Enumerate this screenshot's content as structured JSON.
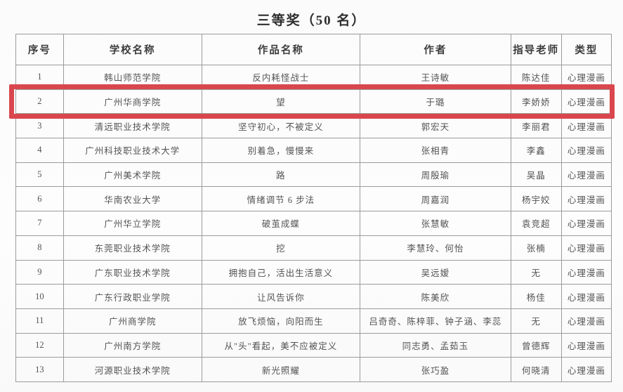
{
  "title": "三等奖（50 名）",
  "colors": {
    "highlight_red": "#d9464d",
    "table_border": "#9b9b9b",
    "text": "#555353"
  },
  "table": {
    "columns": [
      "序号",
      "学校名称",
      "作品名称",
      "作者",
      "指导老师",
      "类型"
    ],
    "highlighted_row_number": "2",
    "rows": [
      [
        "1",
        "韩山师范学院",
        "反内耗怪战士",
        "王诗敏",
        "陈达佳",
        "心理漫画"
      ],
      [
        "2",
        "广州华商学院",
        "望",
        "于璐",
        "李娇娇",
        "心理漫画"
      ],
      [
        "3",
        "清远职业技术学院",
        "坚守初心，不被定义",
        "郭宏天",
        "李丽君",
        "心理漫画"
      ],
      [
        "4",
        "广州科技职业技术大学",
        "别着急，慢慢来",
        "张相青",
        "李鑫",
        "心理漫画"
      ],
      [
        "5",
        "广州美术学院",
        "路",
        "周殷瑜",
        "吴晶",
        "心理漫画"
      ],
      [
        "6",
        "华南农业大学",
        "情绪调节 6 步法",
        "周嘉润",
        "杨宇姣",
        "心理漫画"
      ],
      [
        "7",
        "广州华立学院",
        "破茧成蝶",
        "张慧敏",
        "袁竞超",
        "心理漫画"
      ],
      [
        "8",
        "东莞职业技术学院",
        "挖",
        "李慧玲、何怡",
        "张楠",
        "心理漫画"
      ],
      [
        "9",
        "广东职业技术学院",
        "拥抱自己，活出生活意义",
        "吴远嫒",
        "无",
        "心理漫画"
      ],
      [
        "10",
        "广东行政职业学院",
        "让风告诉你",
        "陈美欣",
        "杨佳",
        "心理漫画"
      ],
      [
        "11",
        "广州商学院",
        "放飞烦恼，向阳而生",
        "吕奇奇、陈梓菲、钟子涵、李蕊",
        "无",
        "心理漫画"
      ],
      [
        "12",
        "广州南方学院",
        "从\"头\"看起，美不应被定义",
        "同志勇、孟茹玉",
        "曾德辉",
        "心理漫画"
      ],
      [
        "13",
        "河源职业技术学院",
        "新光照耀",
        "张巧盈",
        "何晓清",
        "心理漫画"
      ]
    ]
  }
}
